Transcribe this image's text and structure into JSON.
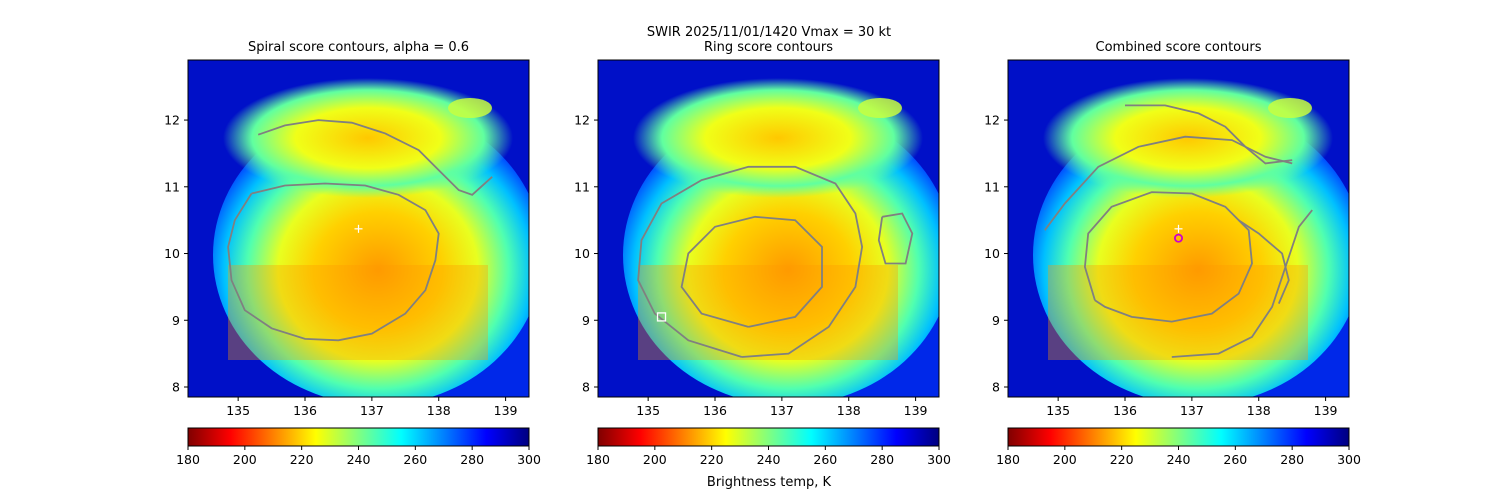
{
  "suptitle": "SWIR  2025/11/01/1420    Vmax = 30 kt",
  "colorbar": {
    "label": "Brightness temp, K",
    "ticks": [
      180,
      200,
      220,
      240,
      260,
      280,
      300
    ],
    "range": [
      180,
      300
    ],
    "colors": [
      "#800000",
      "#ff0000",
      "#ff8000",
      "#ffff00",
      "#80ff80",
      "#00ffff",
      "#0080ff",
      "#0000ff",
      "#000080"
    ]
  },
  "chart_data": [
    {
      "type": "heatmap",
      "title": "Spiral score contours, alpha =  0.6",
      "xlim": [
        134.25,
        139.35
      ],
      "ylim": [
        7.85,
        12.9
      ],
      "xticks": [
        135,
        136,
        137,
        138,
        139
      ],
      "yticks": [
        8,
        9,
        10,
        11,
        12
      ],
      "contours": [
        [
          [
            135.3,
            11.78
          ],
          [
            135.7,
            11.92
          ],
          [
            136.2,
            12.0
          ],
          [
            136.7,
            11.96
          ],
          [
            137.2,
            11.8
          ],
          [
            137.7,
            11.55
          ],
          [
            138.0,
            11.25
          ],
          [
            138.3,
            10.95
          ],
          [
            138.5,
            10.88
          ],
          [
            138.8,
            11.15
          ]
        ],
        [
          [
            135.2,
            10.9
          ],
          [
            135.7,
            11.02
          ],
          [
            136.3,
            11.05
          ],
          [
            136.9,
            11.02
          ],
          [
            137.4,
            10.88
          ],
          [
            137.8,
            10.65
          ],
          [
            138.0,
            10.3
          ],
          [
            137.95,
            9.9
          ],
          [
            137.8,
            9.45
          ],
          [
            137.5,
            9.1
          ],
          [
            137.0,
            8.8
          ],
          [
            136.5,
            8.7
          ],
          [
            136.0,
            8.72
          ],
          [
            135.5,
            8.88
          ],
          [
            135.1,
            9.15
          ],
          [
            134.9,
            9.6
          ],
          [
            134.85,
            10.1
          ],
          [
            134.95,
            10.5
          ],
          [
            135.2,
            10.9
          ]
        ]
      ],
      "markers": [
        {
          "kind": "plus",
          "x": 136.8,
          "y": 10.37,
          "color": "#ffffff"
        }
      ]
    },
    {
      "type": "heatmap",
      "title": "Ring score contours",
      "xlim": [
        134.25,
        139.35
      ],
      "ylim": [
        7.85,
        12.9
      ],
      "xticks": [
        135,
        136,
        137,
        138,
        139
      ],
      "yticks": [
        8,
        9,
        10,
        11,
        12
      ],
      "contours": [
        [
          [
            136.4,
            8.45
          ],
          [
            137.1,
            8.5
          ],
          [
            137.7,
            8.9
          ],
          [
            138.1,
            9.5
          ],
          [
            138.2,
            10.1
          ],
          [
            138.1,
            10.6
          ],
          [
            137.8,
            11.05
          ],
          [
            137.2,
            11.3
          ],
          [
            136.5,
            11.3
          ],
          [
            135.8,
            11.1
          ],
          [
            135.2,
            10.75
          ],
          [
            134.9,
            10.2
          ],
          [
            134.85,
            9.6
          ],
          [
            135.1,
            9.1
          ],
          [
            135.6,
            8.7
          ],
          [
            136.4,
            8.45
          ]
        ],
        [
          [
            136.5,
            8.9
          ],
          [
            137.2,
            9.05
          ],
          [
            137.6,
            9.5
          ],
          [
            137.6,
            10.1
          ],
          [
            137.2,
            10.5
          ],
          [
            136.6,
            10.55
          ],
          [
            136.0,
            10.4
          ],
          [
            135.6,
            10.0
          ],
          [
            135.5,
            9.5
          ],
          [
            135.8,
            9.1
          ],
          [
            136.5,
            8.9
          ]
        ],
        [
          [
            138.5,
            10.55
          ],
          [
            138.8,
            10.6
          ],
          [
            138.95,
            10.3
          ],
          [
            138.85,
            9.85
          ],
          [
            138.55,
            9.85
          ],
          [
            138.45,
            10.2
          ],
          [
            138.5,
            10.55
          ]
        ]
      ],
      "markers": [
        {
          "kind": "square",
          "x": 135.2,
          "y": 9.05,
          "color": "#ffffff"
        }
      ]
    },
    {
      "type": "heatmap",
      "title": "Combined score contours",
      "xlim": [
        134.25,
        139.35
      ],
      "ylim": [
        7.85,
        12.9
      ],
      "xticks": [
        135,
        136,
        137,
        138,
        139
      ],
      "yticks": [
        8,
        9,
        10,
        11,
        12
      ],
      "contours": [
        [
          [
            134.8,
            10.35
          ],
          [
            135.1,
            10.75
          ],
          [
            135.6,
            11.3
          ],
          [
            136.2,
            11.6
          ],
          [
            136.9,
            11.75
          ],
          [
            137.6,
            11.7
          ],
          [
            138.1,
            11.45
          ],
          [
            138.5,
            11.35
          ]
        ],
        [
          [
            136.0,
            12.22
          ],
          [
            136.6,
            12.22
          ],
          [
            137.1,
            12.1
          ],
          [
            137.5,
            11.9
          ],
          [
            137.8,
            11.6
          ],
          [
            138.1,
            11.35
          ],
          [
            138.5,
            11.4
          ]
        ],
        [
          [
            135.55,
            9.3
          ],
          [
            135.4,
            9.8
          ],
          [
            135.45,
            10.3
          ],
          [
            135.8,
            10.7
          ],
          [
            136.4,
            10.92
          ],
          [
            137.0,
            10.9
          ],
          [
            137.5,
            10.7
          ],
          [
            137.85,
            10.35
          ],
          [
            137.9,
            9.85
          ],
          [
            137.7,
            9.4
          ],
          [
            137.3,
            9.1
          ],
          [
            136.7,
            8.98
          ],
          [
            136.1,
            9.05
          ],
          [
            135.7,
            9.2
          ],
          [
            135.55,
            9.3
          ]
        ],
        [
          [
            136.7,
            8.45
          ],
          [
            137.4,
            8.5
          ],
          [
            137.9,
            8.75
          ],
          [
            138.2,
            9.2
          ],
          [
            138.4,
            9.8
          ],
          [
            138.6,
            10.4
          ],
          [
            138.8,
            10.65
          ]
        ],
        [
          [
            138.3,
            9.25
          ],
          [
            138.45,
            9.6
          ],
          [
            138.35,
            10.0
          ],
          [
            138.0,
            10.3
          ],
          [
            137.7,
            10.5
          ]
        ]
      ],
      "markers": [
        {
          "kind": "plus",
          "x": 136.8,
          "y": 10.37,
          "color": "#ffffff"
        },
        {
          "kind": "circle",
          "x": 136.8,
          "y": 10.23,
          "color": "#cc00cc"
        }
      ]
    }
  ]
}
